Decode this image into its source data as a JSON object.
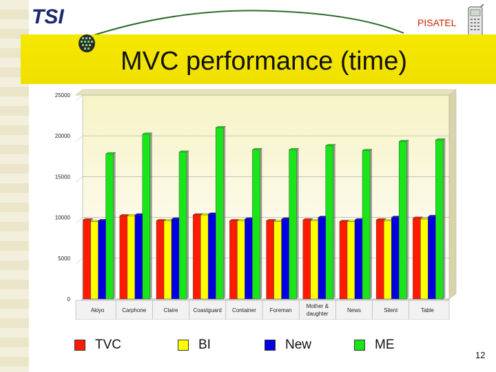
{
  "header": {
    "logo_text": "TSI",
    "brand": "PISATEL",
    "title": "MVC performance (time)"
  },
  "footer": {
    "page_number": "12"
  },
  "colors": {
    "TVC": "#ff1a00",
    "BI": "#ffff00",
    "New": "#0000e0",
    "ME": "#19e619",
    "banner": "#f0e000",
    "plot_bg_top": "#f5f2c0"
  },
  "legend": [
    {
      "label": "TVC",
      "color": "#ff1a00"
    },
    {
      "label": "BI",
      "color": "#ffff00"
    },
    {
      "label": "New",
      "color": "#0000e0"
    },
    {
      "label": "ME",
      "color": "#19e619"
    }
  ],
  "chart_data": {
    "type": "bar",
    "title": "",
    "xlabel": "",
    "ylabel": "",
    "ylim": [
      0,
      25000
    ],
    "yticks": [
      "0",
      "5000",
      "10000",
      "15000",
      "20000",
      "25000"
    ],
    "grid": true,
    "legend_position": "bottom",
    "categories": [
      "Akiyo",
      "Carphone",
      "Claire",
      "Coastguard",
      "Container",
      "Foreman",
      "Mother & daughter",
      "News",
      "Silent",
      "Table"
    ],
    "series": [
      {
        "name": "TVC",
        "values": [
          9700,
          10200,
          9600,
          10300,
          9600,
          9600,
          9700,
          9500,
          9700,
          9900
        ]
      },
      {
        "name": "BI",
        "values": [
          9500,
          10200,
          9600,
          10300,
          9600,
          9500,
          9600,
          9500,
          9600,
          9800
        ]
      },
      {
        "name": "New",
        "values": [
          9600,
          10300,
          9800,
          10400,
          9800,
          9800,
          10000,
          9700,
          10000,
          10100
        ]
      },
      {
        "name": "ME",
        "values": [
          17800,
          20200,
          18000,
          21000,
          18300,
          18300,
          18800,
          18200,
          19300,
          19500
        ]
      }
    ]
  }
}
